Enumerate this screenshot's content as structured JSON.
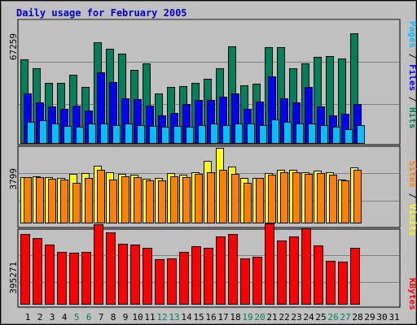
{
  "chart_data": {
    "type": "bar",
    "title": "Daily usage for February 2005",
    "days": [
      "1",
      "2",
      "3",
      "4",
      "5",
      "6",
      "7",
      "8",
      "9",
      "10",
      "11",
      "12",
      "13",
      "14",
      "15",
      "16",
      "17",
      "18",
      "19",
      "20",
      "21",
      "22",
      "23",
      "24",
      "25",
      "26",
      "27",
      "28",
      "29",
      "30",
      "31"
    ],
    "weekend_days": [
      "5",
      "6",
      "12",
      "13",
      "19",
      "20",
      "26",
      "27"
    ],
    "colors": {
      "title": "#0000cc",
      "hits": "#00805c",
      "files": "#0000ff",
      "pages": "#00c0ff",
      "visits": "#ffff00",
      "sites": "#ff8000",
      "kbytes": "#ff0000",
      "weekend_label": "#00805c",
      "weekday_label": "#000000",
      "panel_bg": "#c0c0c0"
    },
    "panels": [
      {
        "name": "hits-files-pages",
        "max_label": "67259",
        "ymax": 67259,
        "side_label_parts": [
          {
            "text": "Pages",
            "color": "#00c0ff"
          },
          {
            "text": " / ",
            "color": "#000000"
          },
          {
            "text": "Files",
            "color": "#0000ff"
          },
          {
            "text": " / ",
            "color": "#000000"
          },
          {
            "text": "Hits",
            "color": "#00805c"
          }
        ],
        "series": [
          {
            "name": "Hits",
            "key": "hits",
            "values": [
              46800,
              42000,
              33600,
              33600,
              38400,
              31200,
              56400,
              52800,
              49800,
              40800,
              44400,
              27600,
              31200,
              31800,
              33600,
              36000,
              42000,
              54000,
              32400,
              33000,
              53400,
              53400,
              42000,
              44400,
              48000,
              48600,
              47400,
              61200,
              0,
              0,
              0
            ]
          },
          {
            "name": "Files",
            "key": "files",
            "values": [
              27600,
              22800,
              20400,
              19200,
              21000,
              18000,
              39600,
              34200,
              25200,
              24600,
              21000,
              15600,
              16800,
              21600,
              24000,
              24000,
              25800,
              27600,
              19200,
              23400,
              37200,
              25200,
              22800,
              31200,
              20400,
              15600,
              16200,
              21600,
              0,
              0,
              0
            ]
          },
          {
            "name": "Pages",
            "key": "pages",
            "values": [
              12000,
              12600,
              10800,
              9600,
              9000,
              10800,
              10800,
              10200,
              10800,
              10200,
              9600,
              9000,
              9600,
              9000,
              10200,
              10800,
              10200,
              10800,
              10800,
              10200,
              13200,
              12000,
              10800,
              10800,
              10200,
              9000,
              7800,
              10200,
              0,
              0,
              0
            ]
          }
        ]
      },
      {
        "name": "visits-sites",
        "max_label": "3799",
        "ymax": 3799,
        "side_label_parts": [
          {
            "text": "Sites",
            "color": "#ff8000"
          },
          {
            "text": " / ",
            "color": "#000000"
          },
          {
            "text": "Visits",
            "color": "#ffff00"
          }
        ],
        "series": [
          {
            "name": "Visits",
            "key": "visits",
            "values": [
              2310,
              2360,
              2310,
              2260,
              2470,
              2530,
              2900,
              2580,
              2470,
              2420,
              2250,
              2260,
              2530,
              2420,
              2580,
              3120,
              3800,
              2840,
              2260,
              2260,
              2530,
              2690,
              2690,
              2580,
              2640,
              2580,
              2200,
              2800,
              0,
              0,
              0
            ]
          },
          {
            "name": "Sites",
            "key": "sites",
            "values": [
              2310,
              2310,
              2250,
              2200,
              2040,
              2260,
              2690,
              2200,
              2360,
              2310,
              2150,
              2150,
              2360,
              2310,
              2470,
              2580,
              2690,
              2470,
              2040,
              2260,
              2420,
              2580,
              2580,
              2470,
              2530,
              2420,
              2150,
              2690,
              0,
              0,
              0
            ]
          }
        ]
      },
      {
        "name": "kbytes",
        "max_label": "395271",
        "ymax": 395271,
        "side_label_parts": [
          {
            "text": "KBytes",
            "color": "#ff0000"
          }
        ],
        "series": [
          {
            "name": "KBytes",
            "key": "kbytes",
            "values": [
              370000,
              350000,
              312000,
              275000,
              270000,
              275000,
              420000,
              380000,
              320000,
              312000,
              298000,
              235000,
              240000,
              273000,
              303000,
              295000,
              355000,
              370000,
              240000,
              250000,
              425000,
              335000,
              355000,
              400000,
              308000,
              228000,
              225000,
              296000,
              0,
              0,
              0
            ]
          }
        ]
      }
    ]
  }
}
